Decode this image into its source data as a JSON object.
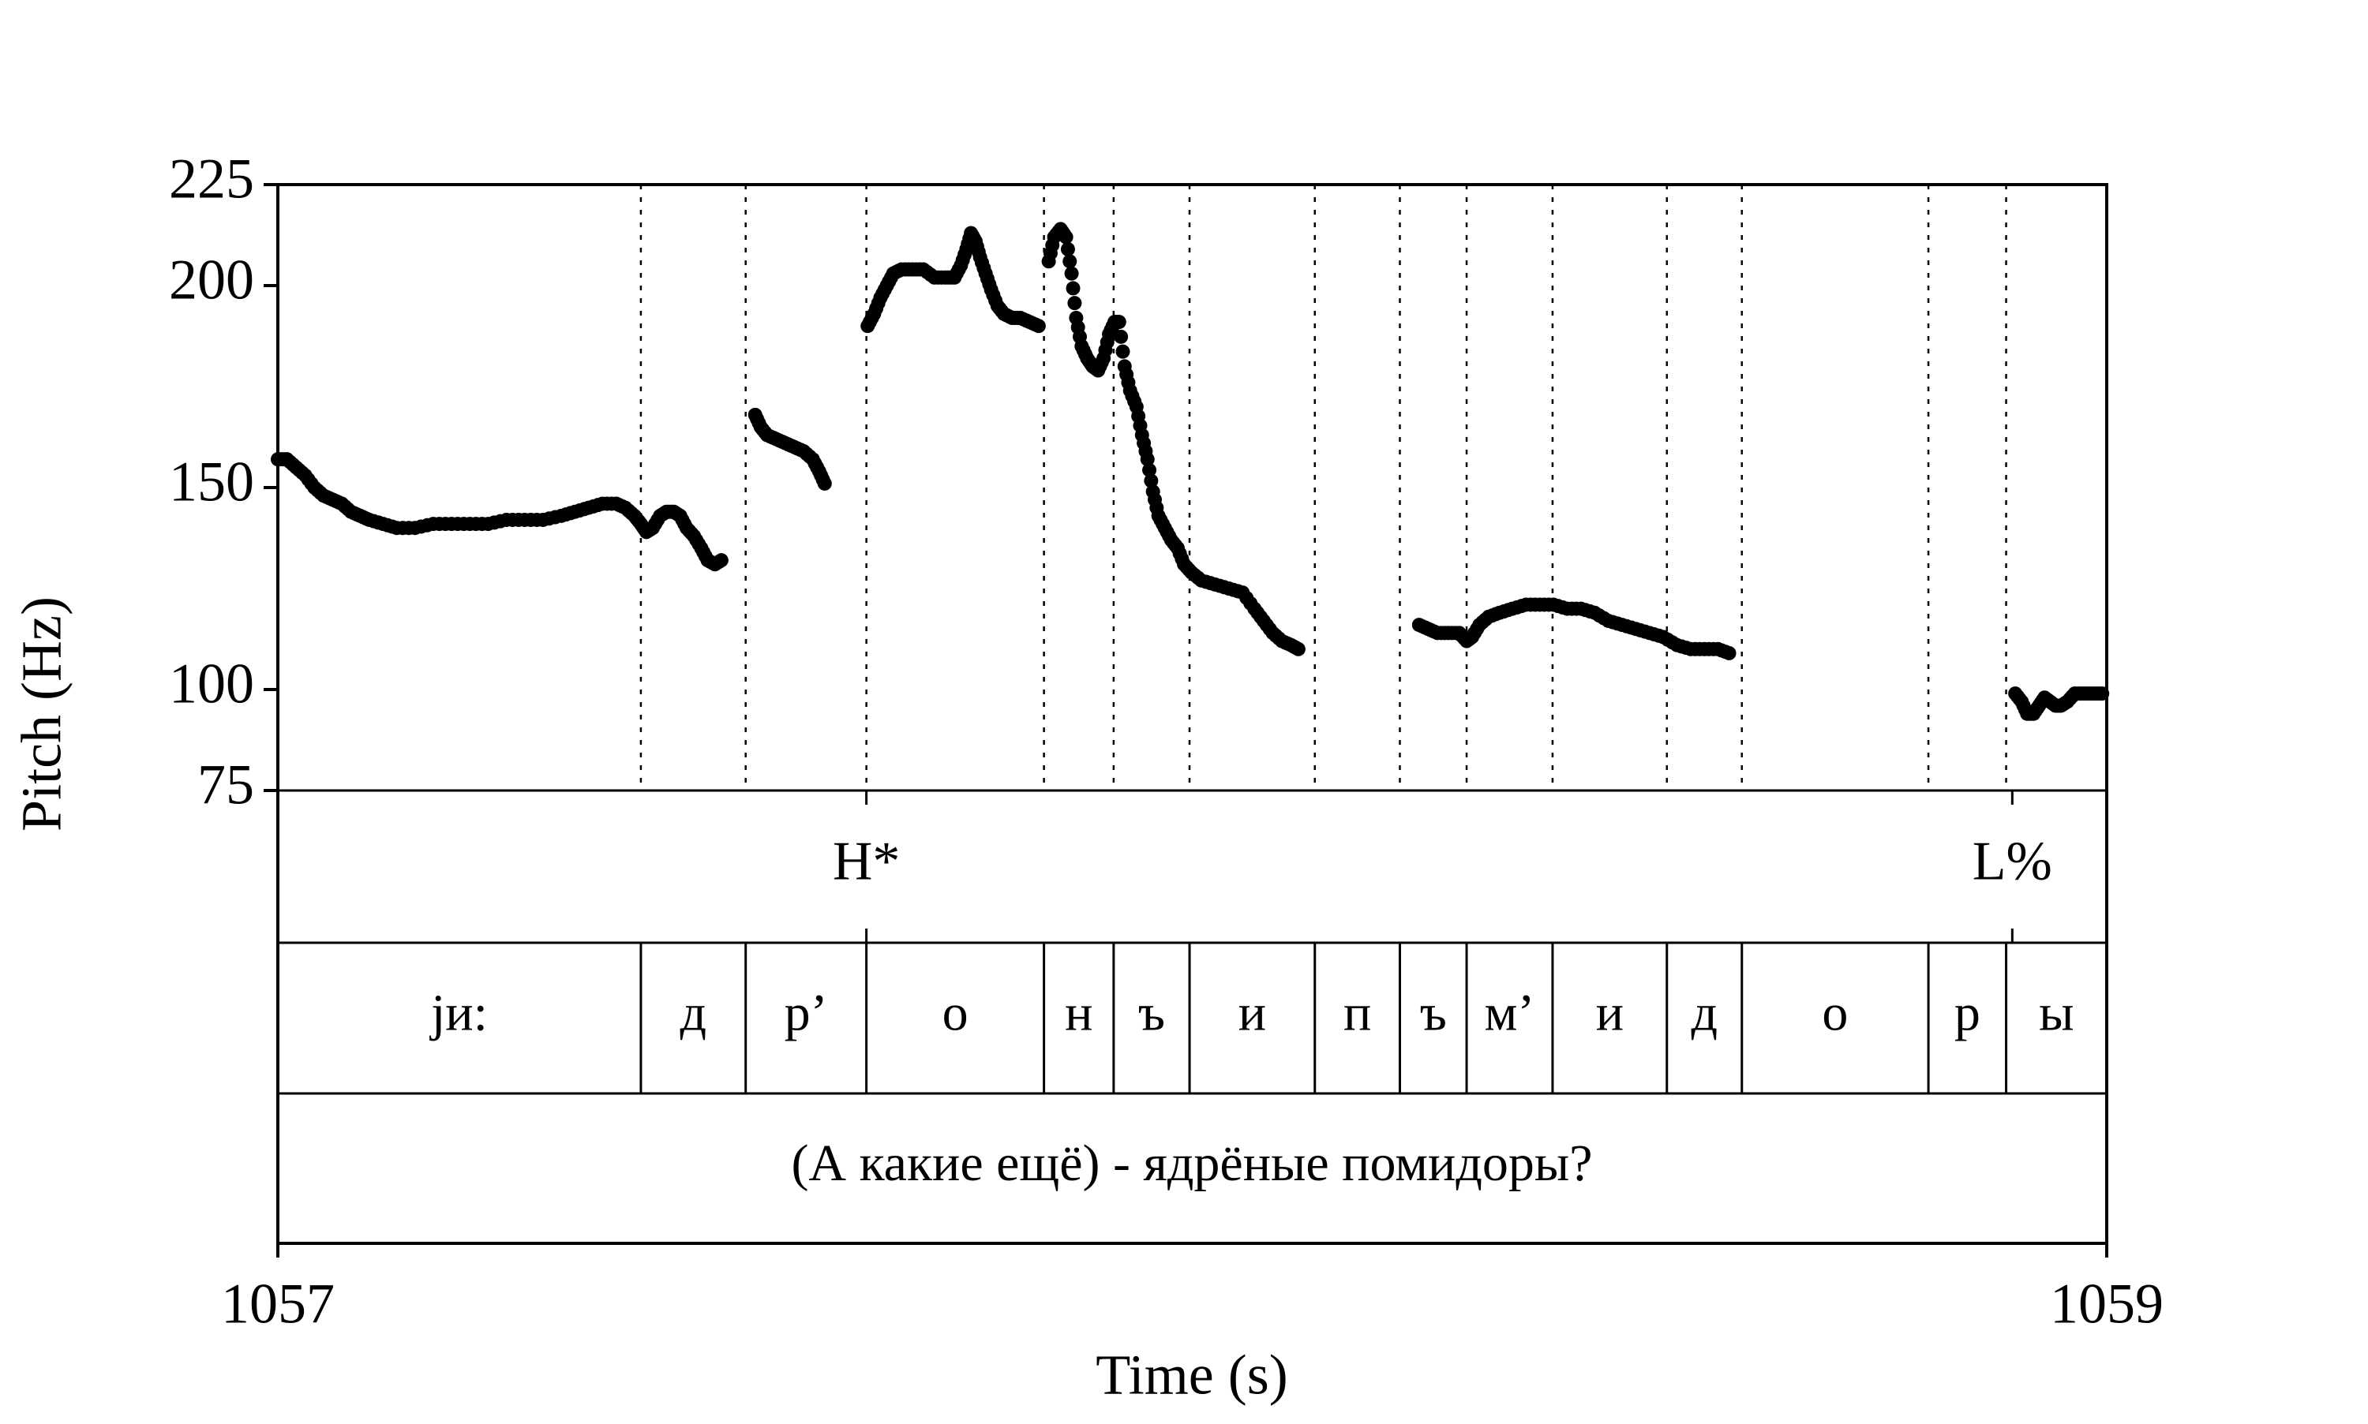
{
  "chart_data": {
    "type": "scatter",
    "title": "",
    "xlabel": "Time (s)",
    "ylabel": "Pitch (Hz)",
    "xlim": [
      1057,
      1059
    ],
    "ylim": [
      75,
      225
    ],
    "x_ticks": [
      "1057",
      "1059"
    ],
    "y_ticks": [
      "225",
      "200",
      "150",
      "100",
      "75"
    ],
    "grid": false,
    "tiers": {
      "tones": [
        {
          "time": 1057.6436,
          "label": "H*"
        },
        {
          "time": 1058.8967,
          "label": "L%"
        }
      ],
      "segments": [
        {
          "start": 1057.0,
          "end": 1057.397,
          "label": "jи:"
        },
        {
          "start": 1057.397,
          "end": 1057.5116,
          "label": "д"
        },
        {
          "start": 1057.5116,
          "end": 1057.6436,
          "label": "р’"
        },
        {
          "start": 1057.6436,
          "end": 1057.8378,
          "label": "о"
        },
        {
          "start": 1057.8378,
          "end": 1057.914,
          "label": "н"
        },
        {
          "start": 1057.914,
          "end": 1057.997,
          "label": "ъ"
        },
        {
          "start": 1057.997,
          "end": 1058.134,
          "label": "и"
        },
        {
          "start": 1058.134,
          "end": 1058.227,
          "label": "п"
        },
        {
          "start": 1058.227,
          "end": 1058.3,
          "label": "ъ"
        },
        {
          "start": 1058.3,
          "end": 1058.394,
          "label": "м’"
        },
        {
          "start": 1058.394,
          "end": 1058.519,
          "label": "и"
        },
        {
          "start": 1058.519,
          "end": 1058.601,
          "label": "д"
        },
        {
          "start": 1058.601,
          "end": 1058.805,
          "label": "о"
        },
        {
          "start": 1058.805,
          "end": 1058.89,
          "label": "р"
        },
        {
          "start": 1058.89,
          "end": 1059.0,
          "label": "ы"
        }
      ],
      "sentence": "(А какие ещё) - ядрёные помидоры?"
    },
    "series": [
      {
        "points": [
          [
            1057.0,
            157
          ],
          [
            1057.01,
            157
          ],
          [
            1057.02,
            155
          ],
          [
            1057.03,
            153
          ],
          [
            1057.04,
            150
          ],
          [
            1057.05,
            148
          ],
          [
            1057.06,
            147
          ],
          [
            1057.07,
            146
          ],
          [
            1057.08,
            144
          ],
          [
            1057.09,
            143
          ],
          [
            1057.1,
            142
          ],
          [
            1057.115,
            141
          ],
          [
            1057.13,
            140
          ],
          [
            1057.15,
            140
          ],
          [
            1057.17,
            141
          ],
          [
            1057.19,
            141
          ],
          [
            1057.21,
            141
          ],
          [
            1057.23,
            141
          ],
          [
            1057.25,
            142
          ],
          [
            1057.27,
            142
          ],
          [
            1057.29,
            142
          ],
          [
            1057.31,
            143
          ],
          [
            1057.325,
            144
          ],
          [
            1057.34,
            145
          ],
          [
            1057.355,
            146
          ],
          [
            1057.37,
            146
          ],
          [
            1057.38,
            145
          ],
          [
            1057.39,
            143
          ],
          [
            1057.397,
            141
          ],
          [
            1057.403,
            139
          ],
          [
            1057.41,
            140
          ],
          [
            1057.418,
            143
          ],
          [
            1057.425,
            144
          ],
          [
            1057.433,
            144
          ],
          [
            1057.44,
            143
          ],
          [
            1057.447,
            140
          ],
          [
            1057.455,
            138
          ],
          [
            1057.463,
            135
          ],
          [
            1057.47,
            132
          ],
          [
            1057.478,
            131
          ],
          [
            1057.485,
            132
          ]
        ]
      },
      {
        "points": [
          [
            1057.522,
            168
          ],
          [
            1057.528,
            165
          ],
          [
            1057.535,
            163
          ],
          [
            1057.545,
            162
          ],
          [
            1057.555,
            161
          ],
          [
            1057.565,
            160
          ],
          [
            1057.575,
            159
          ],
          [
            1057.585,
            157
          ],
          [
            1057.592,
            154
          ],
          [
            1057.598,
            151
          ]
        ]
      },
      {
        "points": [
          [
            1057.645,
            190
          ],
          [
            1057.652,
            193
          ],
          [
            1057.659,
            197
          ],
          [
            1057.666,
            200
          ],
          [
            1057.673,
            203
          ],
          [
            1057.682,
            204
          ],
          [
            1057.694,
            204
          ],
          [
            1057.706,
            204
          ],
          [
            1057.718,
            202
          ],
          [
            1057.73,
            202
          ],
          [
            1057.74,
            202
          ],
          [
            1057.747,
            205
          ],
          [
            1057.753,
            209
          ],
          [
            1057.758,
            213
          ],
          [
            1057.763,
            211
          ],
          [
            1057.768,
            207
          ],
          [
            1057.774,
            203
          ],
          [
            1057.78,
            199
          ],
          [
            1057.787,
            195
          ],
          [
            1057.794,
            193
          ],
          [
            1057.803,
            192
          ],
          [
            1057.812,
            192
          ],
          [
            1057.822,
            191
          ],
          [
            1057.832,
            190
          ]
        ]
      },
      {
        "points": [
          [
            1057.843,
            206
          ],
          [
            1057.849,
            212
          ],
          [
            1057.856,
            214
          ],
          [
            1057.862,
            212
          ],
          [
            1057.868,
            203
          ],
          [
            1057.873,
            192
          ],
          [
            1057.879,
            185
          ],
          [
            1057.885,
            182
          ],
          [
            1057.891,
            180
          ],
          [
            1057.897,
            179
          ],
          [
            1057.903,
            182
          ],
          [
            1057.909,
            188
          ],
          [
            1057.915,
            191
          ],
          [
            1057.92,
            191
          ],
          [
            1057.926,
            180
          ],
          [
            1057.932,
            174
          ],
          [
            1057.939,
            170
          ],
          [
            1057.945,
            163
          ],
          [
            1057.951,
            157
          ],
          [
            1057.957,
            149
          ],
          [
            1057.963,
            143
          ],
          [
            1057.97,
            140
          ],
          [
            1057.977,
            137
          ],
          [
            1057.984,
            135
          ],
          [
            1057.991,
            131
          ],
          [
            1057.999,
            129
          ],
          [
            1058.01,
            127
          ],
          [
            1058.025,
            126
          ],
          [
            1058.04,
            125
          ],
          [
            1058.055,
            124
          ],
          [
            1058.068,
            120
          ],
          [
            1058.078,
            117
          ],
          [
            1058.088,
            114
          ],
          [
            1058.098,
            112
          ],
          [
            1058.108,
            111
          ],
          [
            1058.116,
            110
          ]
        ]
      },
      {
        "points": [
          [
            1058.248,
            116
          ],
          [
            1058.258,
            115
          ],
          [
            1058.268,
            114
          ],
          [
            1058.28,
            114
          ],
          [
            1058.292,
            114
          ],
          [
            1058.3,
            112
          ],
          [
            1058.306,
            113
          ],
          [
            1058.314,
            116
          ],
          [
            1058.324,
            118
          ],
          [
            1058.336,
            119
          ],
          [
            1058.35,
            120
          ],
          [
            1058.365,
            121
          ],
          [
            1058.38,
            121
          ],
          [
            1058.395,
            121
          ],
          [
            1058.41,
            120
          ],
          [
            1058.425,
            120
          ],
          [
            1058.44,
            119
          ],
          [
            1058.455,
            117
          ],
          [
            1058.47,
            116
          ],
          [
            1058.485,
            115
          ],
          [
            1058.5,
            114
          ],
          [
            1058.515,
            113
          ],
          [
            1058.53,
            111
          ],
          [
            1058.545,
            110
          ],
          [
            1058.56,
            110
          ],
          [
            1058.575,
            110
          ],
          [
            1058.587,
            109
          ]
        ]
      },
      {
        "points": [
          [
            1058.9,
            99
          ],
          [
            1058.907,
            97
          ],
          [
            1058.913,
            94
          ],
          [
            1058.92,
            94
          ],
          [
            1058.926,
            96
          ],
          [
            1058.932,
            98
          ],
          [
            1058.938,
            97
          ],
          [
            1058.944,
            96
          ],
          [
            1058.95,
            96
          ],
          [
            1058.957,
            97
          ],
          [
            1058.965,
            99
          ],
          [
            1058.975,
            99
          ],
          [
            1058.985,
            99
          ],
          [
            1058.995,
            99
          ]
        ]
      }
    ]
  }
}
